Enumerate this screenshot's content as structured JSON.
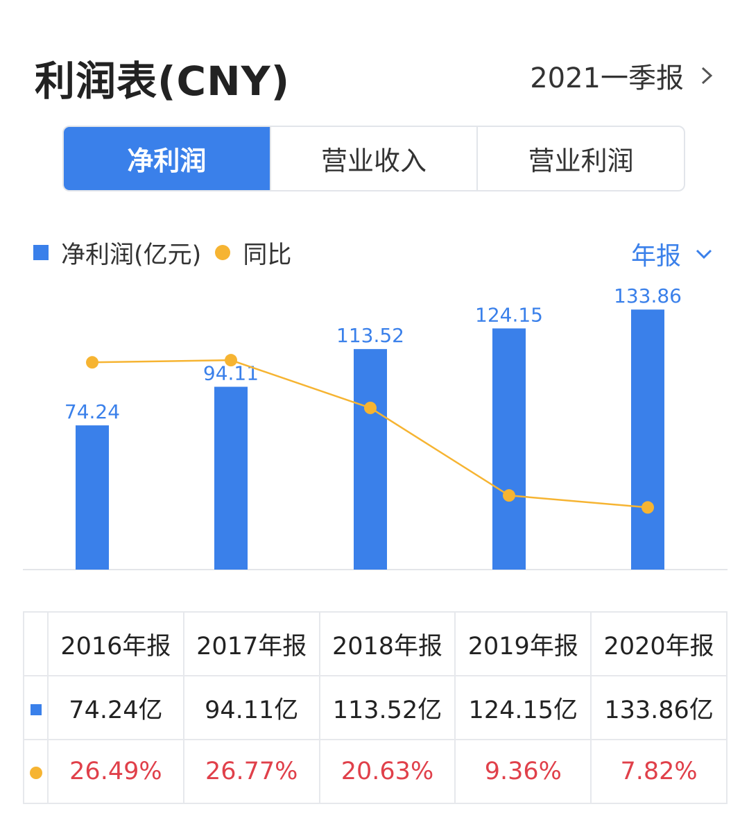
{
  "header": {
    "title": "利润表(CNY)",
    "period": "2021一季报"
  },
  "tabs": [
    "净利润",
    "营业收入",
    "营业利润"
  ],
  "active_tab": 0,
  "legend": {
    "bar_label": "净利润(亿元)",
    "line_label": "同比"
  },
  "report_type": "年报",
  "colors": {
    "accent": "#3a80ea",
    "line": "#f6b432",
    "negative": "#e0404a"
  },
  "chart_data": {
    "type": "bar",
    "categories": [
      "2016年报",
      "2017年报",
      "2018年报",
      "2019年报",
      "2020年报"
    ],
    "series": [
      {
        "name": "净利润(亿元)",
        "type": "bar",
        "values": [
          74.24,
          94.11,
          113.52,
          124.15,
          133.86
        ]
      },
      {
        "name": "同比",
        "type": "line",
        "values": [
          26.49,
          26.77,
          20.63,
          9.36,
          7.82
        ]
      }
    ]
  },
  "table": {
    "headers": [
      "2016年报",
      "2017年报",
      "2018年报",
      "2019年报",
      "2020年报"
    ],
    "values_row": [
      "74.24亿",
      "94.11亿",
      "113.52亿",
      "124.15亿",
      "133.86亿"
    ],
    "yoy_row": [
      "26.49%",
      "26.77%",
      "20.63%",
      "9.36%",
      "7.82%"
    ]
  }
}
